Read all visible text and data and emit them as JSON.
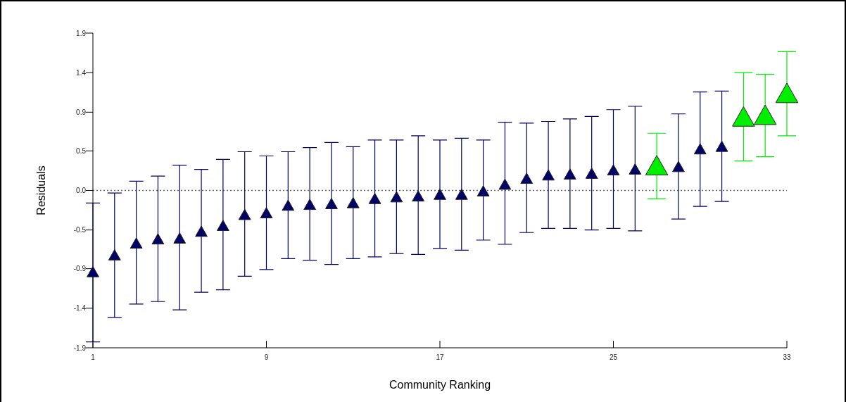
{
  "chart_data": {
    "type": "scatter",
    "xlabel": "Community Ranking",
    "ylabel": "Residuals",
    "xlim": [
      1,
      33
    ],
    "xticks": [
      1,
      9,
      17,
      25,
      33
    ],
    "ylim": [
      -1.87,
      1.87
    ],
    "yticks": [
      {
        "value": -1.87,
        "label": "-1.9"
      },
      {
        "value": -1.4,
        "label": "-1.4"
      },
      {
        "value": -0.93,
        "label": "-0.9"
      },
      {
        "value": -0.47,
        "label": "-0.5"
      },
      {
        "value": 0,
        "label": "0.0"
      },
      {
        "value": 0.47,
        "label": "0.5"
      },
      {
        "value": 0.93,
        "label": "0.9"
      },
      {
        "value": 1.4,
        "label": "1.4"
      },
      {
        "value": 1.87,
        "label": "1.9"
      }
    ],
    "marker": "triangle",
    "grid": false,
    "ref_lines": [
      {
        "axis": "y",
        "value": 0,
        "color": "#666666",
        "line_style": "dotted"
      }
    ],
    "series": [
      {
        "color": "#000066",
        "x": [
          1,
          2,
          3,
          4,
          5,
          6,
          7,
          8,
          9,
          10,
          11,
          12,
          13,
          14,
          15,
          16,
          17,
          18,
          19,
          20,
          21,
          22,
          23,
          24,
          25,
          26,
          28,
          29,
          30
        ],
        "values": [
          -0.97,
          -0.77,
          -0.63,
          -0.58,
          -0.57,
          -0.49,
          -0.42,
          -0.29,
          -0.27,
          -0.18,
          -0.17,
          -0.16,
          -0.15,
          -0.1,
          -0.08,
          -0.07,
          -0.05,
          -0.05,
          -0.01,
          0.07,
          0.14,
          0.18,
          0.19,
          0.2,
          0.24,
          0.25,
          0.28,
          0.49,
          0.52
        ],
        "errors": [
          [
            -1.8,
            -0.15
          ],
          [
            -1.51,
            -0.03
          ],
          [
            -1.35,
            0.11
          ],
          [
            -1.32,
            0.17
          ],
          [
            -1.42,
            0.3
          ],
          [
            -1.21,
            0.25
          ],
          [
            -1.18,
            0.37
          ],
          [
            -1.02,
            0.46
          ],
          [
            -0.94,
            0.41
          ],
          [
            -0.81,
            0.46
          ],
          [
            -0.83,
            0.51
          ],
          [
            -0.88,
            0.57
          ],
          [
            -0.81,
            0.52
          ],
          [
            -0.79,
            0.6
          ],
          [
            -0.75,
            0.6
          ],
          [
            -0.76,
            0.65
          ],
          [
            -0.69,
            0.6
          ],
          [
            -0.71,
            0.62
          ],
          [
            -0.59,
            0.6
          ],
          [
            -0.64,
            0.81
          ],
          [
            -0.5,
            0.8
          ],
          [
            -0.45,
            0.82
          ],
          [
            -0.45,
            0.85
          ],
          [
            -0.47,
            0.88
          ],
          [
            -0.45,
            0.96
          ],
          [
            -0.48,
            1.0
          ],
          [
            -0.34,
            0.91
          ],
          [
            -0.19,
            1.17
          ],
          [
            -0.13,
            1.18
          ]
        ]
      },
      {
        "color": "#00ee00",
        "x": [
          27,
          31,
          32,
          33
        ],
        "values": [
          0.29,
          0.87,
          0.89,
          1.15
        ],
        "errors": [
          [
            -0.1,
            0.68
          ],
          [
            0.35,
            1.4
          ],
          [
            0.4,
            1.38
          ],
          [
            0.65,
            1.65
          ]
        ]
      }
    ]
  }
}
